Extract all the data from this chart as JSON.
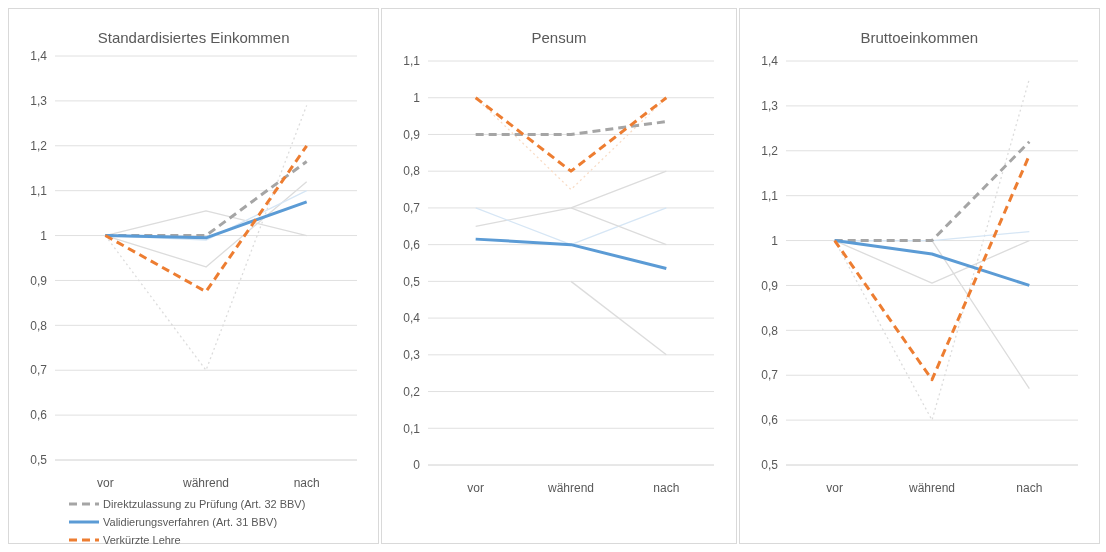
{
  "chart_data": [
    {
      "type": "line",
      "title": "Standardisiertes Einkommen",
      "categories": [
        "vor",
        "während",
        "nach"
      ],
      "ylim": [
        0.5,
        1.4
      ],
      "yticks": [
        {
          "value": 0.5,
          "label": "0,5"
        },
        {
          "value": 0.6,
          "label": "0,6"
        },
        {
          "value": 0.7,
          "label": "0,7"
        },
        {
          "value": 0.8,
          "label": "0,8"
        },
        {
          "value": 0.9,
          "label": "0,9"
        },
        {
          "value": 1,
          "label": "1"
        },
        {
          "value": 1.1,
          "label": "1,1"
        },
        {
          "value": 1.2,
          "label": "1,2"
        },
        {
          "value": 1.3,
          "label": "1,3"
        },
        {
          "value": 1.4,
          "label": "1,4"
        }
      ],
      "grid": "y",
      "legend": "bottom",
      "series": [
        {
          "color": "#dcdcdc",
          "line_style": "solid",
          "values": [
            1,
            1.055,
            1.0
          ]
        },
        {
          "color": "#dcdcdc",
          "line_style": "solid",
          "values": [
            1,
            0.93,
            1.12
          ]
        },
        {
          "color": "#dcdcdc",
          "line_style": "dotted",
          "values": [
            1,
            0.7,
            1.29
          ]
        },
        {
          "color": "#d6e6f5",
          "line_style": "solid",
          "values": [
            1,
            0.99,
            1.1
          ]
        },
        {
          "name": "Direktzulassung zu Prüfung (Art. 32 BBV)",
          "color": "#a5a5a5",
          "line_style": "dashed",
          "values": [
            1,
            1,
            1.165
          ]
        },
        {
          "name": "Validierungsverfahren (Art. 31 BBV)",
          "color": "#5b9bd5",
          "line_style": "solid",
          "values": [
            1,
            0.995,
            1.075
          ]
        },
        {
          "name": "Verkürzte Lehre",
          "color": "#ed7d31",
          "line_style": "dashed",
          "values": [
            1,
            0.875,
            1.2
          ]
        }
      ]
    },
    {
      "type": "line",
      "title": "Pensum",
      "categories": [
        "vor",
        "während",
        "nach"
      ],
      "ylim": [
        0,
        1.1
      ],
      "yticks": [
        {
          "value": 0,
          "label": "0"
        },
        {
          "value": 0.1,
          "label": "0,1"
        },
        {
          "value": 0.2,
          "label": "0,2"
        },
        {
          "value": 0.3,
          "label": "0,3"
        },
        {
          "value": 0.4,
          "label": "0,4"
        },
        {
          "value": 0.5,
          "label": "0,5"
        },
        {
          "value": 0.6,
          "label": "0,6"
        },
        {
          "value": 0.7,
          "label": "0,7"
        },
        {
          "value": 0.8,
          "label": "0,8"
        },
        {
          "value": 0.9,
          "label": "0,9"
        },
        {
          "value": 1,
          "label": "1"
        },
        {
          "value": 1.1,
          "label": "1,1"
        }
      ],
      "grid": "y",
      "series": [
        {
          "color": "#dcdcdc",
          "line_style": "solid",
          "values": [
            0.65,
            0.7,
            0.8
          ]
        },
        {
          "color": "#d6e6f5",
          "line_style": "solid",
          "values": [
            0.7,
            0.6,
            0.7
          ]
        },
        {
          "color": "#dcdcdc",
          "line_style": "solid",
          "values": [
            null,
            0.7,
            0.6
          ]
        },
        {
          "color": "#dcdcdc",
          "line_style": "solid",
          "values": [
            null,
            0.5,
            0.3
          ]
        },
        {
          "color": "#f8dcc6",
          "line_style": "dotted",
          "values": [
            1,
            0.75,
            1
          ]
        },
        {
          "color": "#a5a5a5",
          "line_style": "dashed",
          "values": [
            0.9,
            0.9,
            0.935
          ]
        },
        {
          "color": "#5b9bd5",
          "line_style": "solid",
          "values": [
            0.615,
            0.6,
            0.535
          ]
        },
        {
          "color": "#ed7d31",
          "line_style": "dashed",
          "values": [
            1,
            0.8,
            1
          ]
        }
      ]
    },
    {
      "type": "line",
      "title": "Bruttoeinkommen",
      "categories": [
        "vor",
        "während",
        "nach"
      ],
      "ylim": [
        0.5,
        1.4
      ],
      "yticks": [
        {
          "value": 0.5,
          "label": "0,5"
        },
        {
          "value": 0.6,
          "label": "0,6"
        },
        {
          "value": 0.7,
          "label": "0,7"
        },
        {
          "value": 0.8,
          "label": "0,8"
        },
        {
          "value": 0.9,
          "label": "0,9"
        },
        {
          "value": 1,
          "label": "1"
        },
        {
          "value": 1.1,
          "label": "1,1"
        },
        {
          "value": 1.2,
          "label": "1,2"
        },
        {
          "value": 1.3,
          "label": "1,3"
        },
        {
          "value": 1.4,
          "label": "1,4"
        }
      ],
      "grid": "y",
      "series": [
        {
          "color": "#dcdcdc",
          "line_style": "dotted",
          "values": [
            1,
            0.6,
            1.36
          ]
        },
        {
          "color": "#dcdcdc",
          "line_style": "solid",
          "values": [
            1,
            0.905,
            1.0
          ]
        },
        {
          "color": "#dcdcdc",
          "line_style": "solid",
          "values": [
            1,
            1,
            0.67
          ]
        },
        {
          "color": "#d6e6f5",
          "line_style": "solid",
          "values": [
            1,
            1,
            1.02
          ]
        },
        {
          "color": "#a5a5a5",
          "line_style": "dashed",
          "values": [
            1,
            1,
            1.22
          ]
        },
        {
          "color": "#5b9bd5",
          "line_style": "solid",
          "values": [
            1,
            0.97,
            0.9
          ]
        },
        {
          "color": "#ed7d31",
          "line_style": "dashed",
          "values": [
            1,
            0.69,
            1.19
          ]
        }
      ]
    }
  ]
}
